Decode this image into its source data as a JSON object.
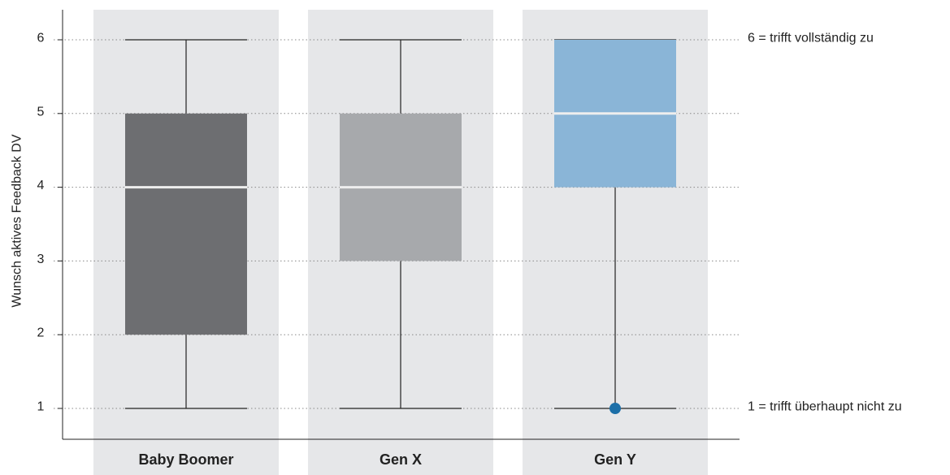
{
  "chart_data": {
    "type": "boxplot",
    "ylabel": "Wunsch aktives Feedback DV",
    "ylim": [
      0.6,
      6.4
    ],
    "yticks": [
      1,
      2,
      3,
      4,
      5,
      6
    ],
    "grid": "horizontal dotted",
    "categories": [
      "Baby Boomer",
      "Gen X",
      "Gen Y"
    ],
    "boxes": [
      {
        "category": "Baby Boomer",
        "min": 1,
        "q1": 2,
        "median": 4,
        "q3": 5,
        "max": 6,
        "outliers": [],
        "color": "#6d6e71"
      },
      {
        "category": "Gen X",
        "min": 1,
        "q1": 3,
        "median": 4,
        "q3": 5,
        "max": 6,
        "outliers": [],
        "color": "#a7a9ac"
      },
      {
        "category": "Gen Y",
        "min": 1,
        "q1": 4,
        "median": 5,
        "q3": 6,
        "max": 6,
        "outliers": [
          1
        ],
        "color": "#8ab5d7"
      }
    ],
    "outlier_color": "#1c6fa8",
    "band_color": "#e6e7e9",
    "annotations": [
      {
        "y": 6,
        "text": "6 = trifft vollständig zu"
      },
      {
        "y": 1,
        "text": "1 = trifft überhaupt nicht zu"
      }
    ]
  }
}
